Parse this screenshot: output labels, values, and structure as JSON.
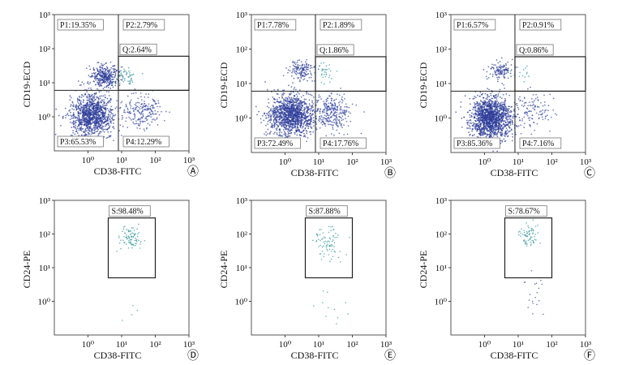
{
  "chart_data": [
    {
      "type": "scatter",
      "panel": "A",
      "xlabel": "CD38-FITC",
      "ylabel": "CD19-ECD",
      "x_scale": "log",
      "y_scale": "log",
      "xlim": [
        0.1,
        1000.0
      ],
      "ylim": [
        0.1,
        1000.0
      ],
      "x_ticks": [
        "10⁰",
        "10¹",
        "10²",
        "10³"
      ],
      "y_ticks": [
        "10⁰",
        "10¹",
        "10²",
        "10³"
      ],
      "quadrant_split": {
        "x": 8,
        "y": 6
      },
      "quadrants": [
        {
          "label": "P1:19.35%",
          "percent": 19.35
        },
        {
          "label": "P2:2.79%",
          "percent": 2.79
        },
        {
          "label": "P3:65.53%",
          "percent": 65.53
        },
        {
          "label": "P4:12.29%",
          "percent": 12.29
        }
      ],
      "gate": {
        "label": "Q:2.64%",
        "percent": 2.64,
        "x_range": [
          8,
          1000
        ],
        "y_range": [
          6,
          60
        ]
      },
      "populations": [
        {
          "color": "#2e3d9a",
          "center": [
            1.3,
            1.1
          ],
          "spread": [
            0.32,
            0.3
          ],
          "share": 0.6553
        },
        {
          "color": "#2e3d9a",
          "center": [
            3.2,
            16
          ],
          "spread": [
            0.2,
            0.16
          ],
          "share": 0.1935
        },
        {
          "color": "#3a4ca8",
          "center": [
            40,
            1.3
          ],
          "spread": [
            0.32,
            0.26
          ],
          "share": 0.1229
        },
        {
          "color": "#3f9ea2",
          "center": [
            13,
            14
          ],
          "spread": [
            0.15,
            0.14
          ],
          "share": 0.0279
        }
      ]
    },
    {
      "type": "scatter",
      "panel": "B",
      "xlabel": "CD38-FITC",
      "ylabel": "CD19-ECD",
      "x_scale": "log",
      "y_scale": "log",
      "xlim": [
        0.1,
        1000.0
      ],
      "ylim": [
        0.1,
        1000.0
      ],
      "x_ticks": [
        "10⁰",
        "10¹",
        "10²",
        "10³"
      ],
      "y_ticks": [
        "10⁰",
        "10¹",
        "10²",
        "10³"
      ],
      "quadrant_split": {
        "x": 8,
        "y": 6
      },
      "quadrants": [
        {
          "label": "P1:7.78%",
          "percent": 7.78
        },
        {
          "label": "P2:1.89%",
          "percent": 1.89
        },
        {
          "label": "P3:72.49%",
          "percent": 72.49
        },
        {
          "label": "P4:17.76%",
          "percent": 17.76
        }
      ],
      "gate": {
        "label": "Q:1.86%",
        "percent": 1.86,
        "x_range": [
          8,
          1000
        ],
        "y_range": [
          6,
          60
        ]
      },
      "populations": [
        {
          "color": "#2e3d9a",
          "center": [
            1.5,
            1.2
          ],
          "spread": [
            0.34,
            0.3
          ],
          "share": 0.7249
        },
        {
          "color": "#2e3d9a",
          "center": [
            3.0,
            25
          ],
          "spread": [
            0.18,
            0.14
          ],
          "share": 0.0778
        },
        {
          "color": "#3a4ca8",
          "center": [
            25,
            1.4
          ],
          "spread": [
            0.3,
            0.26
          ],
          "share": 0.1776
        },
        {
          "color": "#3f9ea2",
          "center": [
            14,
            22
          ],
          "spread": [
            0.15,
            0.14
          ],
          "share": 0.0189
        }
      ]
    },
    {
      "type": "scatter",
      "panel": "C",
      "xlabel": "CD38-FITC",
      "ylabel": "CD19-ECD",
      "x_scale": "log",
      "y_scale": "log",
      "xlim": [
        0.1,
        1000.0
      ],
      "ylim": [
        0.1,
        1000.0
      ],
      "x_ticks": [
        "10⁰",
        "10¹",
        "10²",
        "10³"
      ],
      "y_ticks": [
        "10⁰",
        "10¹",
        "10²",
        "10³"
      ],
      "quadrant_split": {
        "x": 8,
        "y": 6
      },
      "quadrants": [
        {
          "label": "P1:6.57%",
          "percent": 6.57
        },
        {
          "label": "P2:0.91%",
          "percent": 0.91
        },
        {
          "label": "P3:85.36%",
          "percent": 85.36
        },
        {
          "label": "P4:7.16%",
          "percent": 7.16
        }
      ],
      "gate": {
        "label": "Q:0.86%",
        "percent": 0.86,
        "x_range": [
          8,
          1000
        ],
        "y_range": [
          6,
          60
        ]
      },
      "populations": [
        {
          "color": "#2e3d9a",
          "center": [
            1.6,
            1.0
          ],
          "spread": [
            0.3,
            0.3
          ],
          "share": 0.8536
        },
        {
          "color": "#2e3d9a",
          "center": [
            3.0,
            24
          ],
          "spread": [
            0.18,
            0.14
          ],
          "share": 0.0657
        },
        {
          "color": "#3a4ca8",
          "center": [
            25,
            1.6
          ],
          "spread": [
            0.3,
            0.26
          ],
          "share": 0.0716
        },
        {
          "color": "#3f9ea2",
          "center": [
            14,
            20
          ],
          "spread": [
            0.14,
            0.14
          ],
          "share": 0.0091
        }
      ]
    },
    {
      "type": "scatter",
      "panel": "D",
      "xlabel": "CD38-FITC",
      "ylabel": "CD24-PE",
      "x_scale": "log",
      "y_scale": "log",
      "xlim": [
        0.1,
        1000.0
      ],
      "ylim": [
        0.1,
        1000.0
      ],
      "x_ticks": [
        "10⁰",
        "10¹",
        "10²",
        "10³"
      ],
      "y_ticks": [
        "10⁰",
        "10¹",
        "10²",
        "10³"
      ],
      "gate": {
        "label": "S:98.48%",
        "percent": 98.48,
        "x_range": [
          4,
          100
        ],
        "y_range": [
          5,
          300
        ]
      },
      "populations": [
        {
          "color": "#3f9ea2",
          "center": [
            18,
            80
          ],
          "spread": [
            0.16,
            0.18
          ],
          "share": 0.9848
        },
        {
          "color": "#3f9ea2",
          "center": [
            20,
            0.4
          ],
          "spread": [
            0.2,
            0.2
          ],
          "share": 0.0152
        }
      ]
    },
    {
      "type": "scatter",
      "panel": "E",
      "xlabel": "CD38-FITC",
      "ylabel": "CD24-PE",
      "x_scale": "log",
      "y_scale": "log",
      "xlim": [
        0.1,
        1000.0
      ],
      "ylim": [
        0.1,
        1000.0
      ],
      "x_ticks": [
        "10⁰",
        "10¹",
        "10²",
        "10³"
      ],
      "y_ticks": [
        "10⁰",
        "10¹",
        "10²",
        "10³"
      ],
      "gate": {
        "label": "S:87.88%",
        "percent": 87.88,
        "x_range": [
          4,
          100
        ],
        "y_range": [
          5,
          300
        ]
      },
      "populations": [
        {
          "color": "#3f9ea2",
          "center": [
            17,
            60
          ],
          "spread": [
            0.2,
            0.24
          ],
          "share": 0.8788
        },
        {
          "color": "#3f9ea2",
          "center": [
            20,
            1.0
          ],
          "spread": [
            0.3,
            0.35
          ],
          "share": 0.1212
        }
      ]
    },
    {
      "type": "scatter",
      "panel": "F",
      "xlabel": "CD38-FITC",
      "ylabel": "CD24-PE",
      "x_scale": "log",
      "y_scale": "log",
      "xlim": [
        0.1,
        1000.0
      ],
      "ylim": [
        0.1,
        1000.0
      ],
      "x_ticks": [
        "10⁰",
        "10¹",
        "10²",
        "10³"
      ],
      "y_ticks": [
        "10⁰",
        "10¹",
        "10²",
        "10³"
      ],
      "gate": {
        "label": "S:78.67%",
        "percent": 78.67,
        "x_range": [
          4,
          100
        ],
        "y_range": [
          5,
          300
        ]
      },
      "populations": [
        {
          "color": "#3f9ea2",
          "center": [
            22,
            100
          ],
          "spread": [
            0.16,
            0.18
          ],
          "share": 0.7867
        },
        {
          "color": "#3a4ca8",
          "center": [
            30,
            1.5
          ],
          "spread": [
            0.2,
            0.4
          ],
          "share": 0.2133
        }
      ]
    }
  ]
}
